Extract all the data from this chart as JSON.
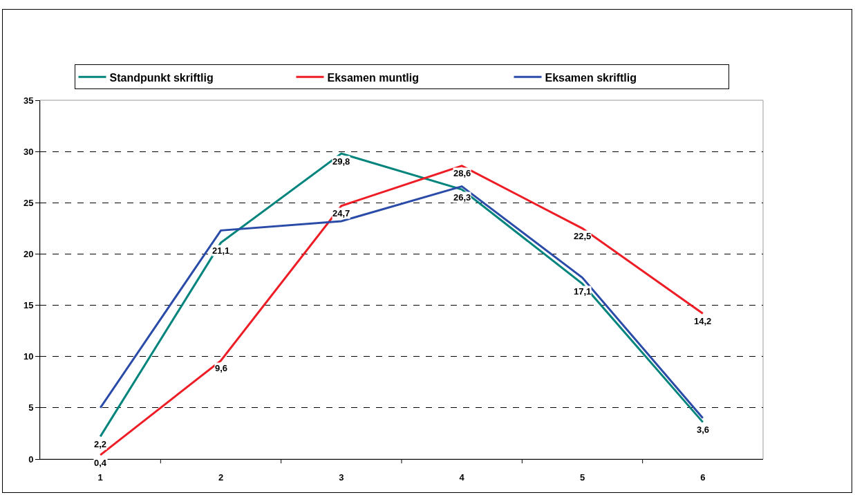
{
  "chart_data": {
    "type": "line",
    "categories": [
      "1",
      "2",
      "3",
      "4",
      "5",
      "6"
    ],
    "series": [
      {
        "name": "Standpunkt skriftlig",
        "color": "#00847c",
        "values": [
          2.2,
          21.1,
          29.8,
          26.3,
          17.1,
          3.6
        ],
        "value_labels": [
          "2,2",
          "21,1",
          "29,8",
          "26,3",
          "17,1",
          "3,6"
        ]
      },
      {
        "name": "Eksamen muntlig",
        "color": "#ee1c25",
        "values": [
          0.4,
          9.6,
          24.7,
          28.6,
          22.5,
          14.2
        ],
        "value_labels": [
          "0,4",
          "9,6",
          "24,7",
          "28,6",
          "22,5",
          "14,2"
        ]
      },
      {
        "name": "Eksamen skriftlig",
        "color": "#2b4ba8",
        "values": [
          5,
          22.3,
          23.2,
          26.6,
          17.7,
          4
        ]
      }
    ],
    "ylim": [
      0,
      35
    ],
    "yticks": [
      0,
      5,
      10,
      15,
      20,
      25,
      30,
      35
    ],
    "grid": "y",
    "legend": "top",
    "line_style": "solid"
  }
}
